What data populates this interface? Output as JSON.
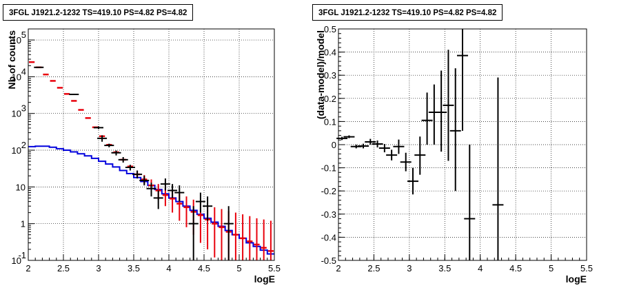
{
  "chart_data": [
    {
      "type": "scatter",
      "title": "3FGL J1921.2-1232 TS=419.10 PS=4.82 PS=4.82",
      "xlabel": "logE",
      "ylabel": "Nb of counts",
      "xlim": [
        2,
        5.5
      ],
      "ylim": [
        0.1,
        200000
      ],
      "log_y": true,
      "grid": true,
      "x_ticks": [
        "2",
        "2.5",
        "3",
        "3.5",
        "4",
        "4.5",
        "5",
        "5.5"
      ],
      "y_ticks": [
        {
          "value": 0.1,
          "label": "10",
          "exp": "-1"
        },
        {
          "value": 1,
          "label": "1",
          "exp": ""
        },
        {
          "value": 10,
          "label": "10",
          "exp": ""
        },
        {
          "value": 100,
          "label": "10",
          "exp": "2"
        },
        {
          "value": 1000,
          "label": "10",
          "exp": "3"
        },
        {
          "value": 10000,
          "label": "10",
          "exp": "4"
        },
        {
          "value": 100000,
          "label": "10",
          "exp": "5"
        }
      ],
      "colors": {
        "data": "#000000",
        "model": "#e8000b",
        "background": "#0000dd"
      },
      "data_points": [
        {
          "x": 2.15,
          "y": 18000,
          "lo": 17600,
          "hi": 18400
        },
        {
          "x": 2.65,
          "y": 3300,
          "lo": 3180,
          "hi": 3420
        },
        {
          "x": 3.0,
          "y": 410,
          "lo": 375,
          "hi": 445
        },
        {
          "x": 3.05,
          "y": 210,
          "lo": 170,
          "hi": 255
        },
        {
          "x": 3.15,
          "y": 135,
          "lo": 120,
          "hi": 150
        },
        {
          "x": 3.25,
          "y": 85,
          "lo": 72,
          "hi": 98
        },
        {
          "x": 3.35,
          "y": 55,
          "lo": 46,
          "hi": 65
        },
        {
          "x": 3.45,
          "y": 34,
          "lo": 28,
          "hi": 40
        },
        {
          "x": 3.55,
          "y": 22,
          "lo": 17,
          "hi": 28
        },
        {
          "x": 3.65,
          "y": 15,
          "lo": 11,
          "hi": 20
        },
        {
          "x": 3.75,
          "y": 9,
          "lo": 5.5,
          "hi": 13
        },
        {
          "x": 3.85,
          "y": 5,
          "lo": 2.5,
          "hi": 8
        },
        {
          "x": 3.95,
          "y": 12,
          "lo": 8,
          "hi": 17
        },
        {
          "x": 4.05,
          "y": 8,
          "lo": 5,
          "hi": 12
        },
        {
          "x": 4.15,
          "y": 7,
          "lo": 4,
          "hi": 11
        },
        {
          "x": 4.35,
          "y": 1,
          "lo": 0.1,
          "hi": 3
        },
        {
          "x": 4.45,
          "y": 4,
          "lo": 2,
          "hi": 7
        },
        {
          "x": 4.55,
          "y": 3,
          "lo": 1.2,
          "hi": 5.5
        },
        {
          "x": 4.85,
          "y": 1,
          "lo": 0.1,
          "hi": 3
        }
      ],
      "model_points": [
        {
          "x": 2.0,
          "y": 25000,
          "lo": 25000,
          "hi": 25000
        },
        {
          "x": 2.1,
          "y": 18000,
          "lo": 18000,
          "hi": 18000
        },
        {
          "x": 2.2,
          "y": 11500,
          "lo": 11500,
          "hi": 11500
        },
        {
          "x": 2.3,
          "y": 7700,
          "lo": 7700,
          "hi": 7700
        },
        {
          "x": 2.4,
          "y": 5000,
          "lo": 5000,
          "hi": 5000
        },
        {
          "x": 2.5,
          "y": 3400,
          "lo": 3400,
          "hi": 3400
        },
        {
          "x": 2.6,
          "y": 2200,
          "lo": 2200,
          "hi": 2200
        },
        {
          "x": 2.7,
          "y": 1250,
          "lo": 1250,
          "hi": 1250
        },
        {
          "x": 2.8,
          "y": 750,
          "lo": 750,
          "hi": 750
        },
        {
          "x": 2.9,
          "y": 420,
          "lo": 420,
          "hi": 420
        },
        {
          "x": 3.0,
          "y": 240,
          "lo": 240,
          "hi": 240
        },
        {
          "x": 3.1,
          "y": 140,
          "lo": 140,
          "hi": 140
        },
        {
          "x": 3.2,
          "y": 88,
          "lo": 88,
          "hi": 88
        },
        {
          "x": 3.3,
          "y": 55,
          "lo": 55,
          "hi": 55
        },
        {
          "x": 3.4,
          "y": 36,
          "lo": 36,
          "hi": 36
        },
        {
          "x": 3.5,
          "y": 22,
          "lo": 18,
          "hi": 27
        },
        {
          "x": 3.6,
          "y": 16,
          "lo": 12,
          "hi": 21
        },
        {
          "x": 3.7,
          "y": 11,
          "lo": 7,
          "hi": 16
        },
        {
          "x": 3.8,
          "y": 8,
          "lo": 4.5,
          "hi": 12
        },
        {
          "x": 3.9,
          "y": 6,
          "lo": 3,
          "hi": 10
        },
        {
          "x": 4.0,
          "y": 4.8,
          "lo": 2,
          "hi": 8
        },
        {
          "x": 4.1,
          "y": 3.5,
          "lo": 1.2,
          "hi": 6.5
        },
        {
          "x": 4.2,
          "y": 2.8,
          "lo": 0.8,
          "hi": 5.5
        },
        {
          "x": 4.3,
          "y": 2.1,
          "lo": 0.5,
          "hi": 4.5
        },
        {
          "x": 4.4,
          "y": 1.7,
          "lo": 0.3,
          "hi": 3.8
        },
        {
          "x": 4.5,
          "y": 1.3,
          "lo": 0.2,
          "hi": 3.2
        },
        {
          "x": 4.6,
          "y": 1.0,
          "lo": 0.12,
          "hi": 2.8
        },
        {
          "x": 4.7,
          "y": 0.8,
          "lo": 0.1,
          "hi": 2.5
        },
        {
          "x": 4.8,
          "y": 0.6,
          "lo": 0.1,
          "hi": 2.2
        },
        {
          "x": 4.9,
          "y": 0.5,
          "lo": 0.1,
          "hi": 2.0
        },
        {
          "x": 5.0,
          "y": 0.4,
          "lo": 0.1,
          "hi": 1.8
        },
        {
          "x": 5.1,
          "y": 0.33,
          "lo": 0.1,
          "hi": 1.6
        },
        {
          "x": 5.2,
          "y": 0.27,
          "lo": 0.1,
          "hi": 1.4
        },
        {
          "x": 5.3,
          "y": 0.22,
          "lo": 0.1,
          "hi": 1.3
        },
        {
          "x": 5.4,
          "y": 0.18,
          "lo": 0.1,
          "hi": 1.2
        }
      ],
      "background_steps": [
        {
          "x": 2.0,
          "y": 125
        },
        {
          "x": 2.1,
          "y": 128
        },
        {
          "x": 2.2,
          "y": 128
        },
        {
          "x": 2.3,
          "y": 120
        },
        {
          "x": 2.4,
          "y": 110
        },
        {
          "x": 2.5,
          "y": 100
        },
        {
          "x": 2.6,
          "y": 90
        },
        {
          "x": 2.7,
          "y": 80
        },
        {
          "x": 2.8,
          "y": 70
        },
        {
          "x": 2.9,
          "y": 60
        },
        {
          "x": 3.0,
          "y": 50
        },
        {
          "x": 3.1,
          "y": 42
        },
        {
          "x": 3.2,
          "y": 35
        },
        {
          "x": 3.3,
          "y": 28
        },
        {
          "x": 3.4,
          "y": 23
        },
        {
          "x": 3.5,
          "y": 18
        },
        {
          "x": 3.6,
          "y": 14
        },
        {
          "x": 3.7,
          "y": 11
        },
        {
          "x": 3.8,
          "y": 8.5
        },
        {
          "x": 3.9,
          "y": 6.5
        },
        {
          "x": 4.0,
          "y": 5
        },
        {
          "x": 4.1,
          "y": 4
        },
        {
          "x": 4.2,
          "y": 3
        },
        {
          "x": 4.3,
          "y": 2.3
        },
        {
          "x": 4.4,
          "y": 1.8
        },
        {
          "x": 4.5,
          "y": 1.4
        },
        {
          "x": 4.6,
          "y": 1.1
        },
        {
          "x": 4.7,
          "y": 0.85
        },
        {
          "x": 4.8,
          "y": 0.65
        },
        {
          "x": 4.9,
          "y": 0.5
        },
        {
          "x": 5.0,
          "y": 0.4
        },
        {
          "x": 5.1,
          "y": 0.3
        },
        {
          "x": 5.2,
          "y": 0.24
        },
        {
          "x": 5.3,
          "y": 0.19
        },
        {
          "x": 5.4,
          "y": 0.15
        },
        {
          "x": 5.5,
          "y": 0.15
        }
      ]
    },
    {
      "type": "scatter",
      "title": "3FGL J1921.2-1232 TS=419.10 PS=4.82 PS=4.82",
      "xlabel": "logE",
      "ylabel": "(data-model)/model",
      "xlim": [
        2,
        5.5
      ],
      "ylim": [
        -0.5,
        0.5
      ],
      "grid": true,
      "x_ticks": [
        "2",
        "2.5",
        "3",
        "3.5",
        "4",
        "4.5",
        "5",
        "5.5"
      ],
      "y_ticks": [
        "-0.5",
        "-0.4",
        "-0.3",
        "-0.2",
        "-0.1",
        "0",
        "0.1",
        "0.2",
        "0.3",
        "0.4",
        "0.5"
      ],
      "points": [
        {
          "x": 2.05,
          "y": 0.027,
          "lo": 0.02,
          "hi": 0.034
        },
        {
          "x": 2.15,
          "y": 0.034,
          "lo": 0.028,
          "hi": 0.04
        },
        {
          "x": 2.25,
          "y": -0.008,
          "lo": -0.016,
          "hi": 0.0
        },
        {
          "x": 2.35,
          "y": -0.006,
          "lo": -0.016,
          "hi": 0.004
        },
        {
          "x": 2.45,
          "y": 0.012,
          "lo": 0.0,
          "hi": 0.025
        },
        {
          "x": 2.55,
          "y": 0.003,
          "lo": -0.012,
          "hi": 0.018
        },
        {
          "x": 2.65,
          "y": -0.015,
          "lo": -0.033,
          "hi": 0.003
        },
        {
          "x": 2.75,
          "y": -0.045,
          "lo": -0.068,
          "hi": -0.022
        },
        {
          "x": 2.85,
          "y": -0.008,
          "lo": -0.04,
          "hi": 0.022
        },
        {
          "x": 2.95,
          "y": -0.075,
          "lo": -0.115,
          "hi": -0.035
        },
        {
          "x": 3.05,
          "y": -0.158,
          "lo": -0.215,
          "hi": -0.1
        },
        {
          "x": 3.15,
          "y": -0.045,
          "lo": -0.13,
          "hi": 0.035
        },
        {
          "x": 3.25,
          "y": 0.105,
          "lo": 0.0,
          "hi": 0.225
        },
        {
          "x": 3.35,
          "y": 0.14,
          "lo": 0.0,
          "hi": 0.26
        },
        {
          "x": 3.45,
          "y": 0.14,
          "lo": -0.03,
          "hi": 0.32
        },
        {
          "x": 3.55,
          "y": 0.17,
          "lo": -0.07,
          "hi": 0.41
        },
        {
          "x": 3.65,
          "y": 0.06,
          "lo": -0.2,
          "hi": 0.33
        },
        {
          "x": 3.75,
          "y": 0.385,
          "lo": 0.06,
          "hi": 0.5
        },
        {
          "x": 3.85,
          "y": -0.32,
          "lo": -0.5,
          "hi": 0.0
        },
        {
          "x": 4.25,
          "y": -0.26,
          "lo": -0.5,
          "hi": 0.29
        }
      ]
    }
  ]
}
